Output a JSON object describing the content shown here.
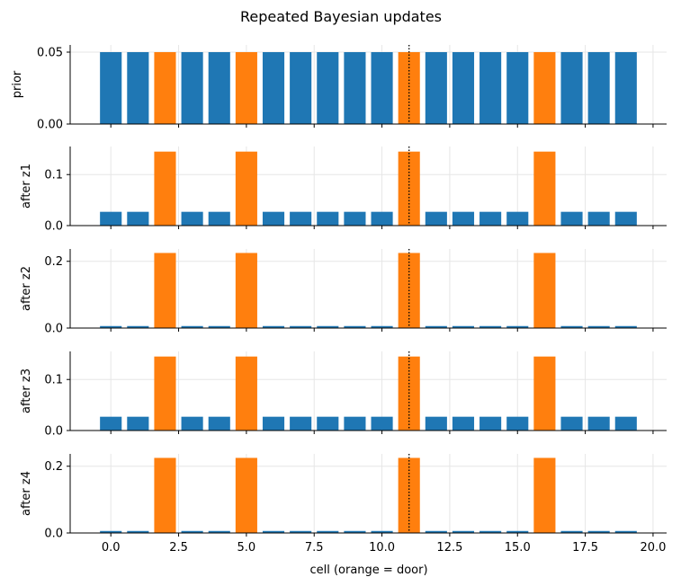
{
  "title": "Repeated Bayesian updates",
  "xlabel": "cell (orange = door)",
  "x_ticks": [
    "0.0",
    "2.5",
    "5.0",
    "7.5",
    "10.0",
    "12.5",
    "15.0",
    "17.5",
    "20.0"
  ],
  "colors": {
    "normal": "#1f77b4",
    "door": "#ff7f0e",
    "grid": "#e6e6e6",
    "marker": "#000000"
  },
  "chart_data": {
    "type": "bar",
    "cells": [
      0,
      1,
      2,
      3,
      4,
      5,
      6,
      7,
      8,
      9,
      10,
      11,
      12,
      13,
      14,
      15,
      16,
      17,
      18,
      19
    ],
    "door_cells": [
      2,
      5,
      11,
      16
    ],
    "marker_x": 11,
    "xlim": [
      -1.5,
      20.5
    ],
    "panels": [
      {
        "ylabel": "prior",
        "ylim": [
          0,
          0.055
        ],
        "yticks": [
          "0.00",
          "0.05"
        ],
        "ytick_values": [
          0,
          0.05
        ],
        "values": [
          0.05,
          0.05,
          0.05,
          0.05,
          0.05,
          0.05,
          0.05,
          0.05,
          0.05,
          0.05,
          0.05,
          0.05,
          0.05,
          0.05,
          0.05,
          0.05,
          0.05,
          0.05,
          0.05,
          0.05
        ]
      },
      {
        "ylabel": "after z1",
        "ylim": [
          0,
          0.155
        ],
        "yticks": [
          "0.0",
          "0.1"
        ],
        "ytick_values": [
          0,
          0.1
        ],
        "values": [
          0.027,
          0.027,
          0.145,
          0.027,
          0.027,
          0.145,
          0.027,
          0.027,
          0.027,
          0.027,
          0.027,
          0.145,
          0.027,
          0.027,
          0.027,
          0.027,
          0.145,
          0.027,
          0.027,
          0.027
        ]
      },
      {
        "ylabel": "after z2",
        "ylim": [
          0,
          0.237
        ],
        "yticks": [
          "0.0",
          "0.2"
        ],
        "ytick_values": [
          0,
          0.2
        ],
        "values": [
          0.006,
          0.006,
          0.225,
          0.006,
          0.006,
          0.225,
          0.006,
          0.006,
          0.006,
          0.006,
          0.006,
          0.225,
          0.006,
          0.006,
          0.006,
          0.006,
          0.225,
          0.006,
          0.006,
          0.006
        ]
      },
      {
        "ylabel": "after z3",
        "ylim": [
          0,
          0.155
        ],
        "yticks": [
          "0.0",
          "0.1"
        ],
        "ytick_values": [
          0,
          0.1
        ],
        "values": [
          0.027,
          0.027,
          0.145,
          0.027,
          0.027,
          0.145,
          0.027,
          0.027,
          0.027,
          0.027,
          0.027,
          0.145,
          0.027,
          0.027,
          0.027,
          0.027,
          0.145,
          0.027,
          0.027,
          0.027
        ]
      },
      {
        "ylabel": "after z4",
        "ylim": [
          0,
          0.237
        ],
        "yticks": [
          "0.0",
          "0.2"
        ],
        "ytick_values": [
          0,
          0.2
        ],
        "values": [
          0.006,
          0.006,
          0.225,
          0.006,
          0.006,
          0.225,
          0.006,
          0.006,
          0.006,
          0.006,
          0.006,
          0.225,
          0.006,
          0.006,
          0.006,
          0.006,
          0.225,
          0.006,
          0.006,
          0.006
        ]
      }
    ]
  }
}
